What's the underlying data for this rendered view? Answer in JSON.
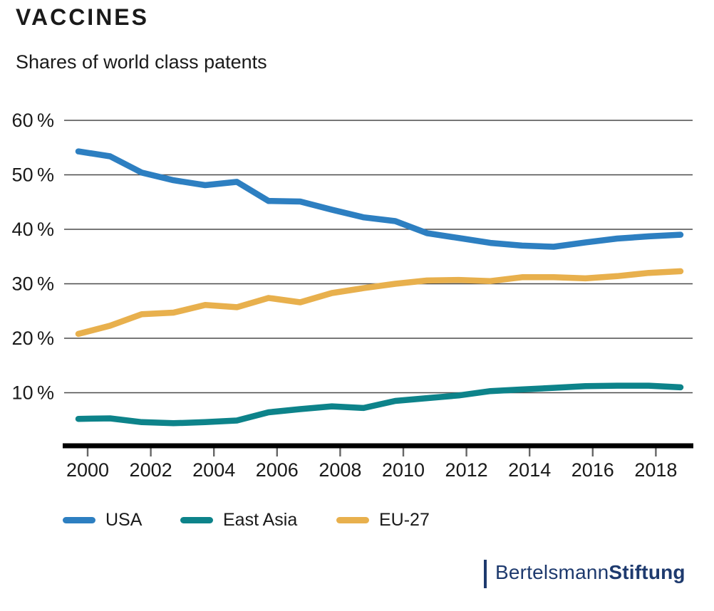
{
  "header": {
    "title": "VACCINES",
    "subtitle": "Shares of world class patents"
  },
  "chart_data": {
    "type": "line",
    "title": "VACCINES",
    "subtitle": "Shares of world class patents",
    "x": [
      2000,
      2001,
      2002,
      2003,
      2004,
      2005,
      2006,
      2007,
      2008,
      2009,
      2010,
      2011,
      2012,
      2013,
      2014,
      2015,
      2016,
      2017,
      2018,
      2019
    ],
    "series": [
      {
        "name": "USA",
        "color": "#2d7fc1",
        "values": [
          54.3,
          53.4,
          50.4,
          49.0,
          48.1,
          48.7,
          45.2,
          45.1,
          43.6,
          42.2,
          41.5,
          39.3,
          38.4,
          37.5,
          37.0,
          36.8,
          37.6,
          38.3,
          38.7,
          39.0
        ]
      },
      {
        "name": "East Asia",
        "color": "#0d838a",
        "values": [
          5.2,
          5.3,
          4.6,
          4.4,
          4.6,
          4.9,
          6.4,
          7.0,
          7.5,
          7.2,
          8.5,
          9.0,
          9.5,
          10.3,
          10.6,
          10.9,
          11.2,
          11.3,
          11.3,
          11.0
        ]
      },
      {
        "name": "EU-27",
        "color": "#e8b04d",
        "values": [
          20.8,
          22.3,
          24.4,
          24.7,
          26.1,
          25.7,
          27.4,
          26.6,
          28.3,
          29.2,
          30.0,
          30.6,
          30.7,
          30.5,
          31.2,
          31.2,
          31.0,
          31.4,
          32.0,
          32.3
        ]
      }
    ],
    "xlabel": "",
    "ylabel": "",
    "ylim": [
      0,
      63
    ],
    "yticks": [
      10,
      20,
      30,
      40,
      50,
      60
    ],
    "ytick_suffix": "%",
    "xticks": [
      2000,
      2002,
      2004,
      2006,
      2008,
      2010,
      2012,
      2014,
      2016,
      2018
    ],
    "grid": true,
    "legend_position": "bottom"
  },
  "footer": {
    "brand_regular": "Bertelsmann",
    "brand_bold": "Stiftung"
  }
}
